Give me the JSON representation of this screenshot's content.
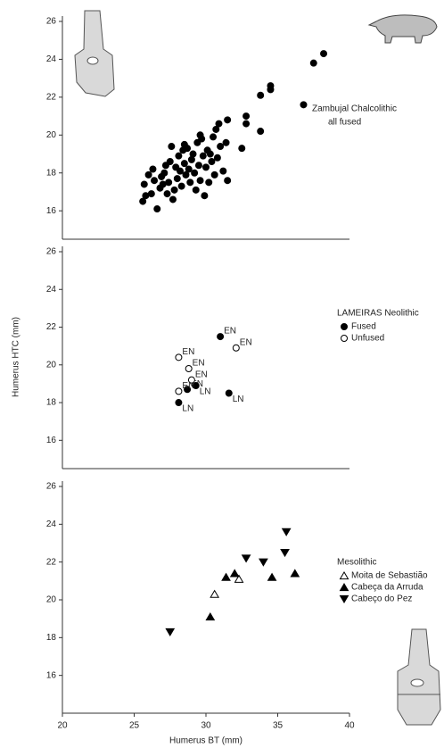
{
  "chart_data": [
    {
      "type": "scatter",
      "title": "Zambujal Chalcolithic",
      "subtitle": "all fused",
      "xlim": [
        20,
        40
      ],
      "ylim": [
        14.5,
        26
      ],
      "yticks": [
        16,
        18,
        20,
        22,
        24,
        26
      ],
      "series": [
        {
          "color": "#000000",
          "marker": "circle",
          "filled": true,
          "x": [
            25.6,
            25.8,
            25.7,
            26.2,
            26.4,
            26.3,
            26.6,
            26.8,
            26.9,
            27.0,
            27.1,
            27.3,
            27.4,
            27.5,
            27.6,
            27.7,
            27.8,
            27.9,
            28.0,
            28.1,
            28.2,
            28.3,
            28.4,
            28.5,
            28.6,
            28.7,
            28.8,
            28.9,
            29.0,
            29.1,
            29.2,
            29.3,
            29.4,
            29.5,
            29.6,
            29.7,
            29.8,
            29.9,
            30.0,
            30.1,
            30.2,
            30.3,
            30.4,
            30.5,
            30.6,
            30.7,
            30.8,
            31.0,
            31.2,
            31.4,
            26.0,
            27.2,
            28.5,
            29.6,
            30.9,
            31.5,
            31.5,
            32.5,
            32.8,
            32.8,
            33.8,
            33.8,
            34.5,
            34.5,
            36.8,
            37.5,
            38.2
          ],
          "values": [
            16.5,
            16.8,
            17.4,
            16.9,
            17.6,
            18.2,
            16.1,
            17.2,
            17.8,
            17.4,
            18.0,
            16.9,
            17.5,
            18.6,
            19.4,
            16.6,
            17.1,
            18.3,
            17.7,
            18.9,
            18.1,
            17.3,
            19.2,
            18.5,
            17.9,
            19.3,
            18.2,
            17.5,
            18.7,
            19.0,
            18.0,
            17.1,
            19.6,
            18.4,
            17.6,
            19.8,
            18.9,
            16.8,
            18.3,
            19.2,
            17.5,
            19.0,
            18.6,
            19.9,
            17.9,
            20.3,
            18.8,
            19.4,
            18.1,
            19.6,
            17.9,
            18.4,
            19.5,
            20.0,
            20.6,
            17.6,
            20.8,
            19.3,
            20.6,
            21.0,
            20.2,
            22.1,
            22.4,
            22.6,
            21.6,
            23.8,
            24.3
          ]
        }
      ]
    },
    {
      "type": "scatter",
      "title": "LAMEIRAS Neolithic",
      "ylabel": "Humerus HTC (mm)",
      "xlim": [
        20,
        40
      ],
      "ylim": [
        14.5,
        26
      ],
      "yticks": [
        16,
        18,
        20,
        22,
        24,
        26
      ],
      "series": [
        {
          "name": "Fused",
          "color": "#000000",
          "marker": "circle",
          "filled": true,
          "x": [
            31.0,
            28.7,
            29.3,
            28.1,
            31.6
          ],
          "values": [
            21.5,
            18.7,
            18.9,
            18.0,
            18.5
          ],
          "point_labels": [
            "EN",
            "EN",
            "LN",
            "LN",
            "LN"
          ]
        },
        {
          "name": "Unfused",
          "color": "#000000",
          "marker": "circle",
          "filled": false,
          "x": [
            28.1,
            32.1,
            28.8,
            29.0,
            28.1
          ],
          "values": [
            20.4,
            20.9,
            19.8,
            19.2,
            18.6
          ],
          "point_labels": [
            "EN",
            "EN",
            "EN",
            "EN",
            "EN"
          ]
        }
      ]
    },
    {
      "type": "scatter",
      "title": "Mesolithic",
      "xlabel": "Humerus BT (mm)",
      "xlim": [
        20,
        40
      ],
      "ylim": [
        14,
        26
      ],
      "xticks": [
        20,
        25,
        30,
        35,
        40
      ],
      "yticks": [
        16,
        18,
        20,
        22,
        24,
        26
      ],
      "series": [
        {
          "name": "Moita de Sebastião",
          "color": "#000000",
          "marker": "triangle-up",
          "filled": false,
          "x": [
            30.6,
            32.3
          ],
          "values": [
            20.3,
            21.1
          ]
        },
        {
          "name": "Cabeça da Arruda",
          "color": "#000000",
          "marker": "triangle-up",
          "filled": true,
          "x": [
            30.3,
            31.4,
            32.0,
            34.6,
            36.2
          ],
          "values": [
            19.1,
            21.2,
            21.4,
            21.2,
            21.4
          ]
        },
        {
          "name": "Cabeço do Pez",
          "color": "#000000",
          "marker": "triangle-down",
          "filled": true,
          "x": [
            27.5,
            32.8,
            34.0,
            35.5,
            35.6
          ],
          "values": [
            18.3,
            22.2,
            22.0,
            22.5,
            23.6
          ]
        }
      ]
    }
  ]
}
